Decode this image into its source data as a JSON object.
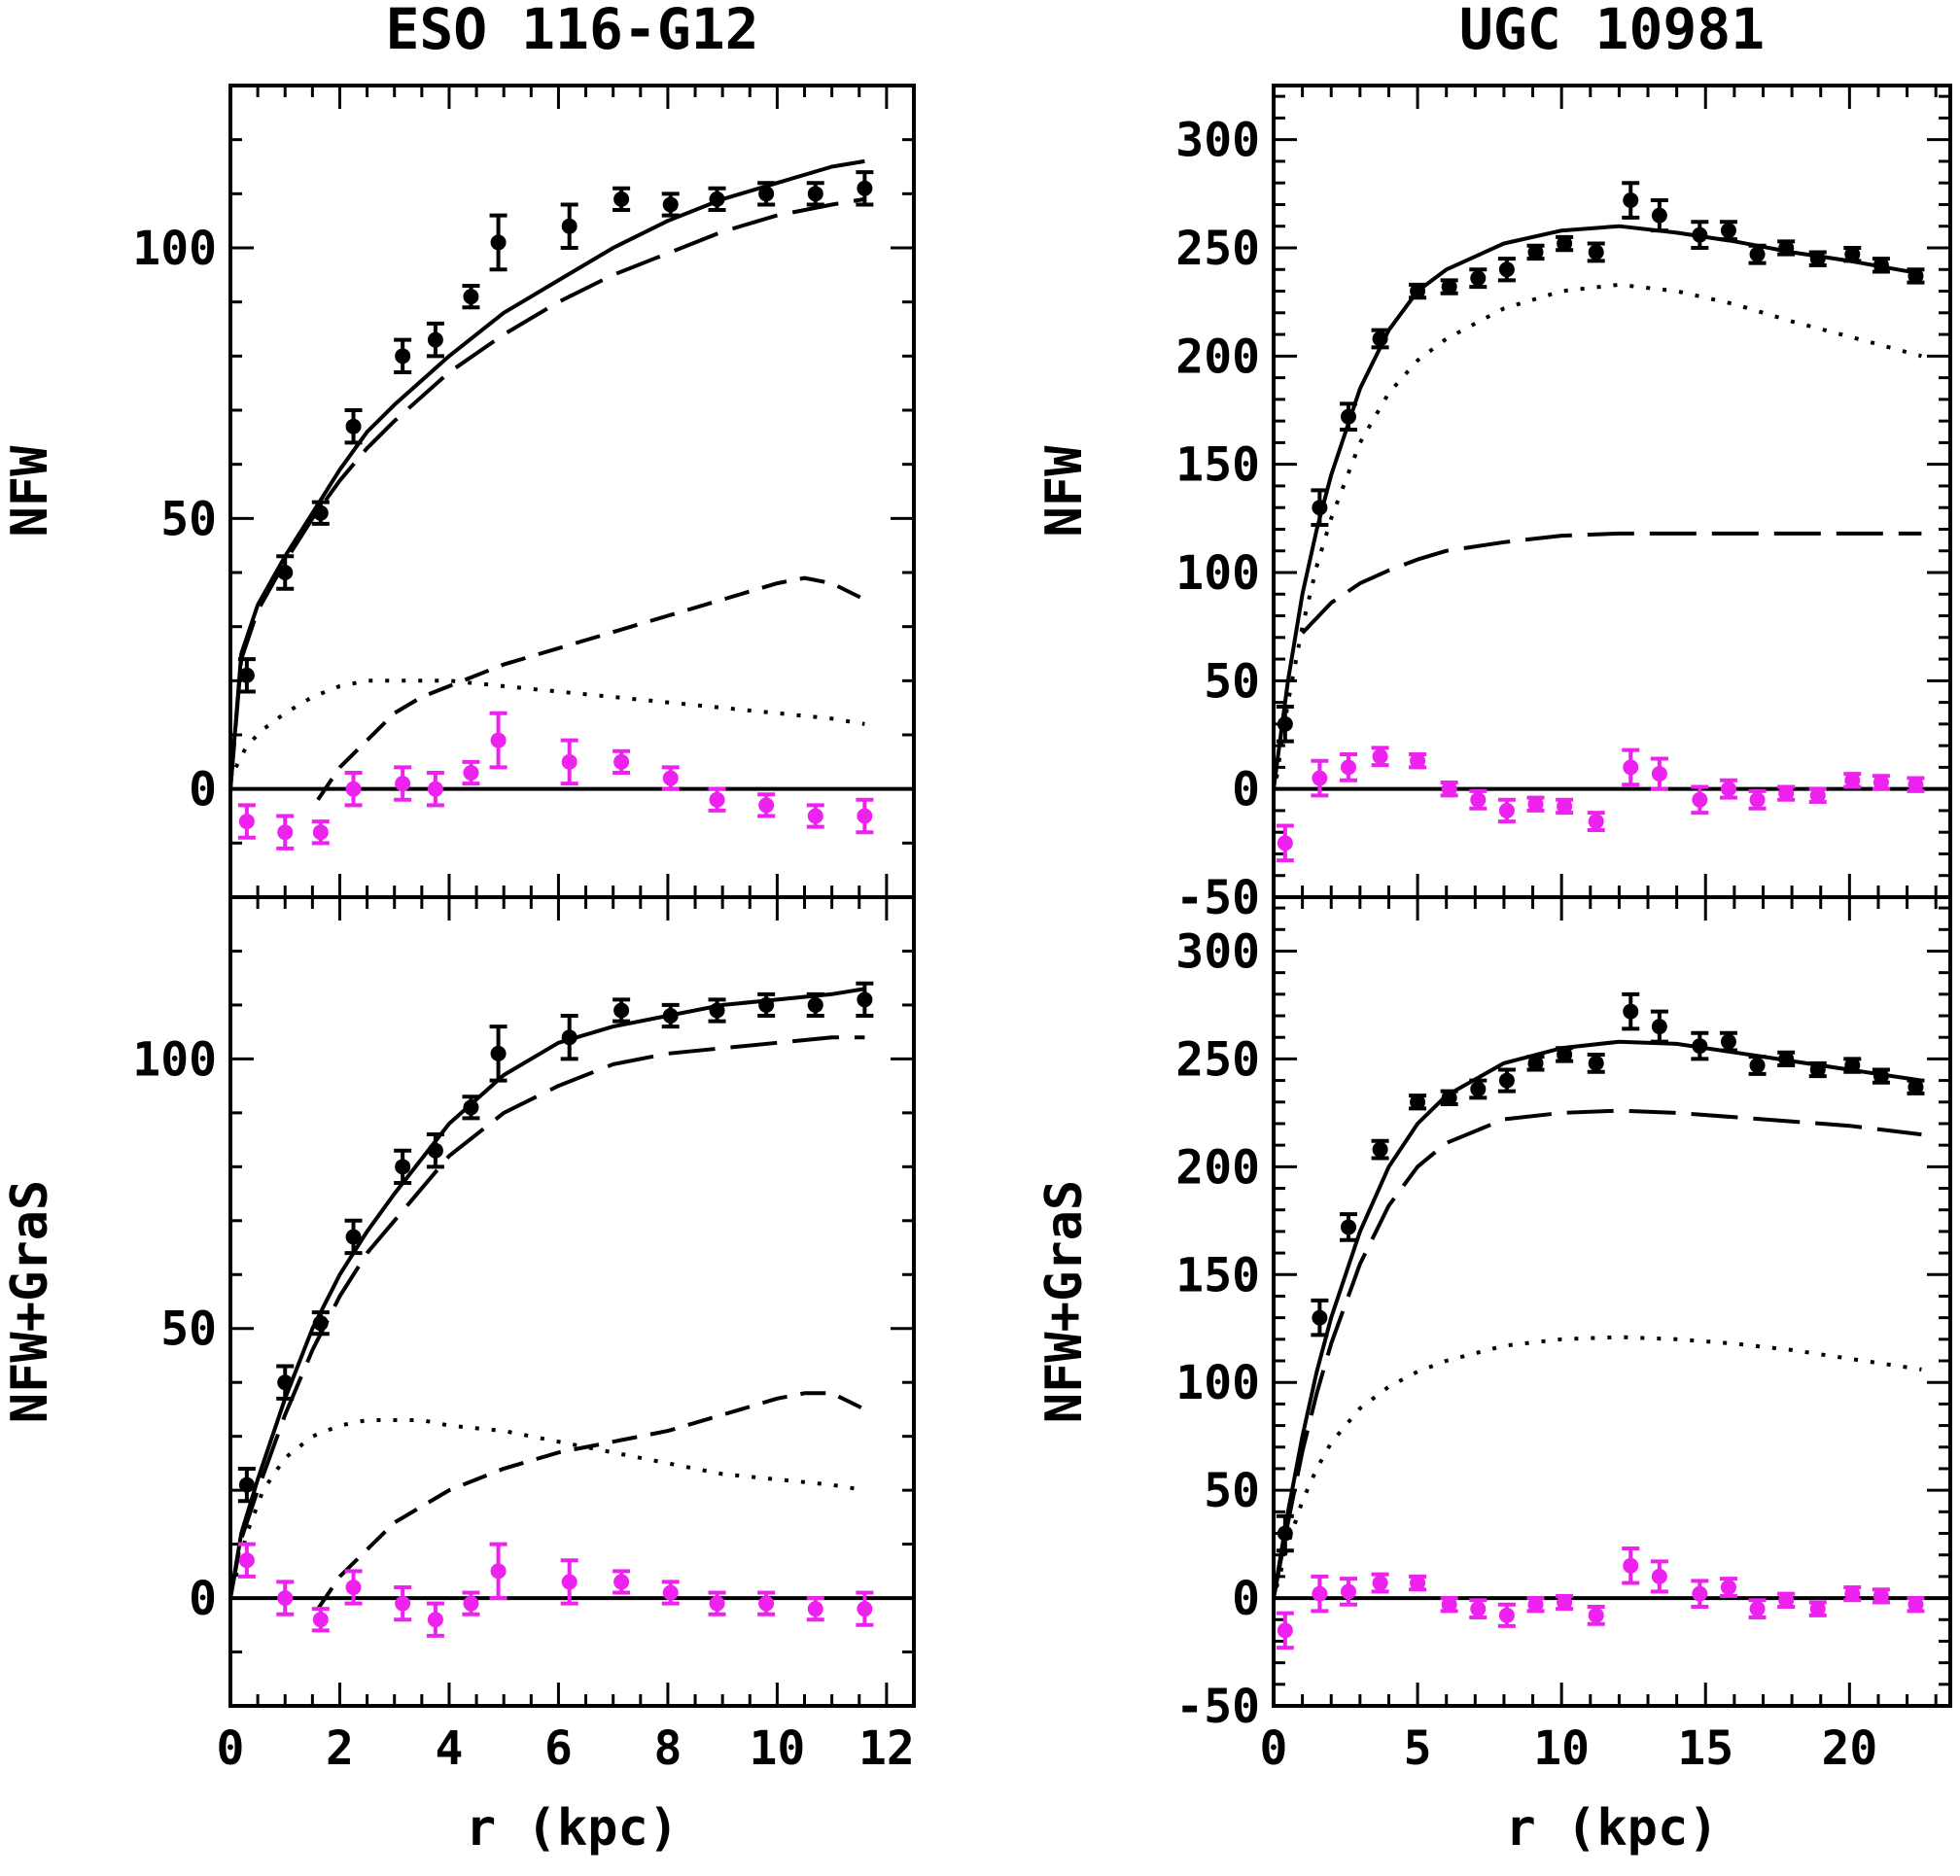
{
  "colors": {
    "data": "#000000",
    "residual": "#ee22ee"
  },
  "chart_data": [
    {
      "type": "scatter",
      "title": "ESO 116-G12",
      "ylabel": "NFW",
      "xlabel": "",
      "xlim": [
        0,
        12.5
      ],
      "ylim": [
        -20,
        130
      ],
      "xticks": [
        "0",
        "2",
        "4",
        "6",
        "8",
        "10",
        "12"
      ],
      "yticks": [
        "0",
        "50",
        "100"
      ],
      "points_x": [
        0.3,
        1.0,
        1.65,
        2.25,
        3.15,
        3.75,
        4.4,
        4.9,
        6.2,
        7.15,
        8.05,
        8.9,
        9.8,
        10.7,
        11.6
      ],
      "points_y": [
        21,
        40,
        51,
        67,
        80,
        83,
        91,
        101,
        104,
        109,
        108,
        109,
        110,
        110,
        111
      ],
      "points_err": [
        3,
        3,
        2,
        3,
        3,
        3,
        2,
        5,
        4,
        2,
        2,
        2,
        2,
        2,
        3
      ],
      "residual_y": [
        -6,
        -8,
        -8,
        0,
        1,
        0,
        3,
        9,
        5,
        5,
        2,
        -2,
        -3,
        -5,
        -5
      ],
      "residual_err": [
        3,
        3,
        2,
        3,
        3,
        3,
        2,
        5,
        4,
        2,
        2,
        2,
        2,
        2,
        3
      ],
      "series": [
        {
          "style": "solid",
          "x": [
            0,
            0.2,
            0.5,
            1,
            1.5,
            2,
            2.5,
            3,
            4,
            5,
            6,
            7,
            8,
            9,
            10,
            11,
            11.6
          ],
          "y": [
            0,
            25,
            34,
            43,
            51,
            59,
            66,
            71,
            80,
            88,
            94,
            100,
            105,
            109,
            112,
            115,
            116
          ]
        },
        {
          "style": "long-dash",
          "x": [
            0,
            0.2,
            0.5,
            1,
            1.5,
            2,
            2.5,
            3,
            4,
            5,
            6,
            7,
            8,
            9,
            10,
            11,
            11.6
          ],
          "y": [
            0,
            24,
            33,
            42,
            50,
            57,
            63,
            68,
            77,
            84,
            90,
            95,
            99,
            103,
            106,
            108,
            109
          ]
        },
        {
          "style": "dash",
          "x": [
            1.6,
            2,
            2.5,
            3,
            3.5,
            4,
            5,
            6,
            7,
            8,
            9,
            10,
            10.5,
            11,
            11.6
          ],
          "y": [
            -2,
            4,
            9,
            14,
            17,
            19,
            23,
            26,
            29,
            32,
            35,
            38,
            39,
            38,
            35
          ]
        },
        {
          "style": "dot",
          "x": [
            0.1,
            0.3,
            0.6,
            1,
            1.5,
            2,
            2.5,
            3,
            4,
            5,
            6,
            7,
            8,
            9,
            10,
            11,
            11.6
          ],
          "y": [
            4,
            8,
            11,
            14,
            17,
            19,
            20,
            20,
            20,
            19,
            18,
            17,
            16,
            15,
            14,
            13,
            12
          ]
        }
      ]
    },
    {
      "type": "scatter",
      "title": "UGC 10981",
      "ylabel": "NFW",
      "xlabel": "",
      "xlim": [
        0,
        23.5
      ],
      "ylim": [
        -50,
        325
      ],
      "xticks": [
        "0",
        "5",
        "10",
        "15",
        "20"
      ],
      "yticks": [
        "-50",
        "0",
        "50",
        "100",
        "150",
        "200",
        "250",
        "300"
      ],
      "points_x": [
        0.4,
        1.6,
        2.6,
        3.7,
        5.0,
        6.1,
        7.1,
        8.1,
        9.1,
        10.1,
        11.2,
        12.4,
        13.4,
        14.8,
        15.8,
        16.8,
        17.8,
        18.9,
        20.1,
        21.1,
        22.3
      ],
      "points_y": [
        30,
        130,
        172,
        208,
        230,
        232,
        236,
        240,
        248,
        252,
        248,
        272,
        265,
        256,
        258,
        247,
        250,
        245,
        247,
        242,
        237
      ],
      "points_err": [
        8,
        8,
        6,
        4,
        3,
        3,
        4,
        5,
        3,
        3,
        4,
        8,
        7,
        6,
        4,
        4,
        3,
        3,
        3,
        3,
        3
      ],
      "residual_y": [
        -25,
        5,
        10,
        15,
        13,
        0,
        -5,
        -10,
        -7,
        -8,
        -15,
        10,
        7,
        -5,
        0,
        -5,
        -2,
        -3,
        4,
        3,
        2
      ],
      "residual_err": [
        8,
        8,
        6,
        4,
        3,
        3,
        4,
        5,
        3,
        3,
        4,
        8,
        7,
        6,
        4,
        4,
        3,
        3,
        3,
        3,
        3
      ],
      "series": [
        {
          "style": "solid",
          "x": [
            0,
            0.5,
            1,
            1.5,
            2,
            3,
            4,
            5,
            6,
            8,
            10,
            12,
            14,
            16,
            18,
            20,
            22.5
          ],
          "y": [
            0,
            50,
            90,
            120,
            145,
            185,
            212,
            230,
            240,
            252,
            258,
            260,
            257,
            253,
            248,
            244,
            238
          ]
        },
        {
          "style": "dot",
          "x": [
            0.1,
            0.5,
            1,
            1.5,
            2,
            3,
            4,
            5,
            6,
            8,
            10,
            12,
            14,
            16,
            18,
            20,
            22.5
          ],
          "y": [
            5,
            40,
            75,
            103,
            125,
            160,
            183,
            198,
            208,
            222,
            230,
            233,
            230,
            224,
            216,
            209,
            200
          ]
        },
        {
          "style": "long-dash",
          "x": [
            1,
            2,
            3,
            4,
            5,
            6,
            8,
            10,
            12,
            14,
            16,
            18,
            20,
            22.5
          ],
          "y": [
            72,
            86,
            95,
            101,
            106,
            110,
            114,
            117,
            118,
            118,
            118,
            118,
            118,
            118
          ]
        }
      ]
    },
    {
      "type": "scatter",
      "title": "",
      "ylabel": "NFW+GraS",
      "xlabel": "r (kpc)",
      "xlim": [
        0,
        12.5
      ],
      "ylim": [
        -20,
        130
      ],
      "xticks": [
        "0",
        "2",
        "4",
        "6",
        "8",
        "10",
        "12"
      ],
      "yticks": [
        "0",
        "50",
        "100"
      ],
      "points_x": [
        0.3,
        1.0,
        1.65,
        2.25,
        3.15,
        3.75,
        4.4,
        4.9,
        6.2,
        7.15,
        8.05,
        8.9,
        9.8,
        10.7,
        11.6
      ],
      "points_y": [
        21,
        40,
        51,
        67,
        80,
        83,
        91,
        101,
        104,
        109,
        108,
        109,
        110,
        110,
        111
      ],
      "points_err": [
        3,
        3,
        2,
        3,
        3,
        3,
        2,
        5,
        4,
        2,
        2,
        2,
        2,
        2,
        3
      ],
      "residual_y": [
        7,
        0,
        -4,
        2,
        -1,
        -4,
        -1,
        5,
        3,
        3,
        1,
        -1,
        -1,
        -2,
        -2
      ],
      "residual_err": [
        3,
        3,
        2,
        3,
        3,
        3,
        2,
        5,
        4,
        2,
        2,
        2,
        2,
        2,
        3
      ],
      "series": [
        {
          "style": "solid",
          "x": [
            0,
            0.2,
            0.5,
            1,
            1.5,
            2,
            2.5,
            3,
            4,
            5,
            6,
            7,
            8,
            9,
            10,
            11,
            11.6
          ],
          "y": [
            0,
            12,
            22,
            37,
            50,
            60,
            68,
            75,
            88,
            97,
            103,
            106,
            108,
            110,
            111,
            112,
            113
          ]
        },
        {
          "style": "long-dash",
          "x": [
            0,
            0.2,
            0.5,
            1,
            1.5,
            2,
            2.5,
            3,
            4,
            5,
            6,
            7,
            8,
            9,
            10,
            11,
            11.6
          ],
          "y": [
            0,
            11,
            20,
            34,
            46,
            56,
            64,
            70,
            82,
            90,
            95,
            99,
            101,
            102,
            103,
            104,
            104
          ]
        },
        {
          "style": "dash",
          "x": [
            1.6,
            2,
            2.5,
            3,
            3.5,
            4,
            5,
            6,
            7,
            8,
            9,
            10,
            10.5,
            11,
            11.6
          ],
          "y": [
            -2,
            4,
            9,
            14,
            17,
            20,
            24,
            27,
            29,
            31,
            34,
            37,
            38,
            38,
            35
          ]
        },
        {
          "style": "dot",
          "x": [
            0.1,
            0.3,
            0.6,
            1,
            1.5,
            2,
            2.5,
            3,
            3.5,
            4,
            5,
            6,
            7,
            8,
            9,
            10,
            11,
            11.6
          ],
          "y": [
            4,
            12,
            20,
            26,
            30,
            32,
            33,
            33,
            33,
            32,
            31,
            29,
            27,
            25,
            23,
            22,
            21,
            20
          ]
        }
      ]
    },
    {
      "type": "scatter",
      "title": "",
      "ylabel": "NFW+GraS",
      "xlabel": "r (kpc)",
      "xlim": [
        0,
        23.5
      ],
      "ylim": [
        -50,
        325
      ],
      "xticks": [
        "0",
        "5",
        "10",
        "15",
        "20"
      ],
      "yticks": [
        "-50",
        "0",
        "50",
        "100",
        "150",
        "200",
        "250",
        "300"
      ],
      "points_x": [
        0.4,
        1.6,
        2.6,
        3.7,
        5.0,
        6.1,
        7.1,
        8.1,
        9.1,
        10.1,
        11.2,
        12.4,
        13.4,
        14.8,
        15.8,
        16.8,
        17.8,
        18.9,
        20.1,
        21.1,
        22.3
      ],
      "points_y": [
        30,
        130,
        172,
        208,
        230,
        232,
        236,
        240,
        248,
        252,
        248,
        272,
        265,
        256,
        258,
        247,
        250,
        245,
        247,
        242,
        237
      ],
      "points_err": [
        8,
        8,
        6,
        4,
        3,
        3,
        4,
        5,
        3,
        3,
        4,
        8,
        7,
        6,
        4,
        4,
        3,
        3,
        3,
        3,
        3
      ],
      "residual_y": [
        -15,
        2,
        3,
        7,
        7,
        -3,
        -5,
        -8,
        -3,
        -2,
        -8,
        15,
        10,
        2,
        5,
        -5,
        -1,
        -5,
        2,
        1,
        -3
      ],
      "residual_err": [
        8,
        8,
        6,
        4,
        3,
        3,
        4,
        5,
        3,
        3,
        4,
        8,
        7,
        6,
        4,
        4,
        3,
        3,
        3,
        3,
        3
      ],
      "series": [
        {
          "style": "solid",
          "x": [
            0,
            0.5,
            1,
            1.5,
            2,
            3,
            4,
            5,
            6,
            8,
            10,
            12,
            14,
            16,
            18,
            20,
            22.5
          ],
          "y": [
            0,
            40,
            75,
            105,
            130,
            170,
            200,
            220,
            233,
            248,
            255,
            258,
            257,
            253,
            249,
            245,
            240
          ]
        },
        {
          "style": "long-dash",
          "x": [
            0,
            0.5,
            1,
            1.5,
            2,
            3,
            4,
            5,
            6,
            8,
            10,
            12,
            14,
            16,
            18,
            20,
            22.5
          ],
          "y": [
            0,
            35,
            68,
            95,
            118,
            155,
            182,
            200,
            211,
            222,
            225,
            226,
            225,
            223,
            221,
            219,
            215
          ]
        },
        {
          "style": "dot",
          "x": [
            0.1,
            0.5,
            1,
            1.5,
            2,
            3,
            4,
            5,
            6,
            8,
            10,
            12,
            14,
            16,
            18,
            20,
            22.5
          ],
          "y": [
            5,
            25,
            45,
            60,
            72,
            88,
            98,
            105,
            110,
            117,
            120,
            121,
            120,
            118,
            115,
            111,
            106
          ]
        }
      ]
    }
  ]
}
